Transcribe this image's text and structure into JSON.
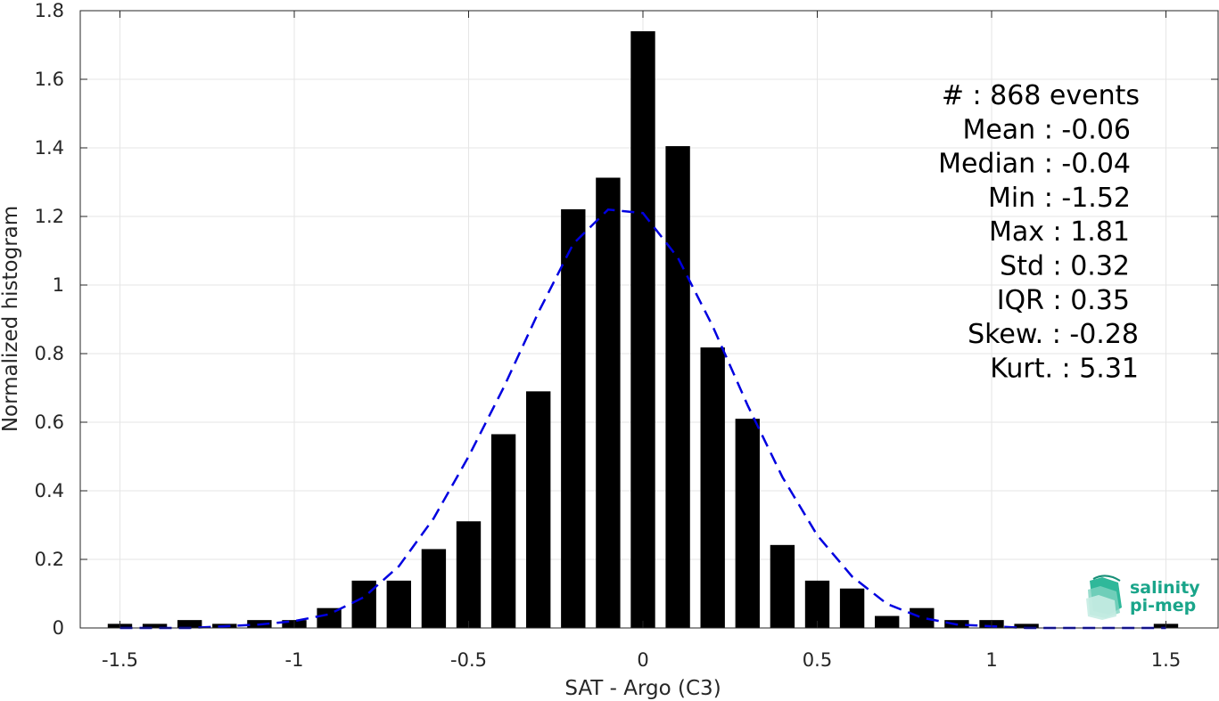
{
  "chart_data": {
    "type": "bar",
    "xlabel": "SAT - Argo (C3)",
    "ylabel": "Normalized histogram",
    "xlim": [
      -1.6,
      1.6
    ],
    "ylim": [
      0,
      1.8
    ],
    "grid": true,
    "x_ticks": [
      -1.5,
      -1,
      -0.5,
      0,
      0.5,
      1,
      1.5
    ],
    "x_tick_labels": [
      "-1.5",
      "-1",
      "-0.5",
      "0",
      "0.5",
      "1",
      "1.5"
    ],
    "y_ticks": [
      0,
      0.2,
      0.4,
      0.6,
      0.8,
      1,
      1.2,
      1.4,
      1.6,
      1.8
    ],
    "y_tick_labels": [
      "0",
      "0.2",
      "0.4",
      "0.6",
      "0.8",
      "1",
      "1.2",
      "1.4",
      "1.6",
      "1.8"
    ],
    "bar_color": "#000000",
    "bar_width": 0.07,
    "bars": [
      {
        "x": -1.5,
        "y": 0.012
      },
      {
        "x": -1.4,
        "y": 0.012
      },
      {
        "x": -1.3,
        "y": 0.023
      },
      {
        "x": -1.2,
        "y": 0.012
      },
      {
        "x": -1.1,
        "y": 0.023
      },
      {
        "x": -1.0,
        "y": 0.023
      },
      {
        "x": -0.9,
        "y": 0.058
      },
      {
        "x": -0.8,
        "y": 0.138
      },
      {
        "x": -0.7,
        "y": 0.138
      },
      {
        "x": -0.6,
        "y": 0.23
      },
      {
        "x": -0.5,
        "y": 0.311
      },
      {
        "x": -0.4,
        "y": 0.565
      },
      {
        "x": -0.3,
        "y": 0.69
      },
      {
        "x": -0.2,
        "y": 1.221
      },
      {
        "x": -0.1,
        "y": 1.313
      },
      {
        "x": 0.0,
        "y": 1.74
      },
      {
        "x": 0.1,
        "y": 1.405
      },
      {
        "x": 0.2,
        "y": 0.818
      },
      {
        "x": 0.3,
        "y": 0.61
      },
      {
        "x": 0.4,
        "y": 0.242
      },
      {
        "x": 0.5,
        "y": 0.138
      },
      {
        "x": 0.6,
        "y": 0.115
      },
      {
        "x": 0.7,
        "y": 0.035
      },
      {
        "x": 0.8,
        "y": 0.058
      },
      {
        "x": 0.9,
        "y": 0.023
      },
      {
        "x": 1.0,
        "y": 0.023
      },
      {
        "x": 1.1,
        "y": 0.012
      },
      {
        "x": 1.5,
        "y": 0.012
      }
    ],
    "fit_curve": {
      "style": "dashed",
      "color": "#0000e0",
      "x": [
        -1.5,
        -1.4,
        -1.3,
        -1.2,
        -1.1,
        -1.0,
        -0.9,
        -0.8,
        -0.7,
        -0.6,
        -0.5,
        -0.4,
        -0.3,
        -0.2,
        -0.1,
        0.0,
        0.1,
        0.2,
        0.3,
        0.4,
        0.5,
        0.6,
        0.7,
        0.8,
        0.9,
        1.0,
        1.1,
        1.2,
        1.3,
        1.4,
        1.5
      ],
      "y": [
        0.0,
        0.0,
        0.0,
        0.005,
        0.01,
        0.02,
        0.04,
        0.09,
        0.18,
        0.32,
        0.5,
        0.7,
        0.92,
        1.12,
        1.22,
        1.21,
        1.08,
        0.88,
        0.65,
        0.44,
        0.27,
        0.15,
        0.07,
        0.03,
        0.01,
        0.005,
        0.0,
        0.0,
        0.0,
        0.0,
        0.0
      ]
    },
    "stats_lines": [
      "#  : 868 events",
      "Mean : -0.06",
      "Median : -0.04",
      "Min : -1.52",
      "Max : 1.81",
      "Std : 0.32",
      "IQR : 0.35",
      "Skew. : -0.28",
      "Kurt. : 5.31"
    ]
  },
  "logo": {
    "line1": "salinity",
    "line2": "pi-mep",
    "color": "#1aa58a"
  }
}
